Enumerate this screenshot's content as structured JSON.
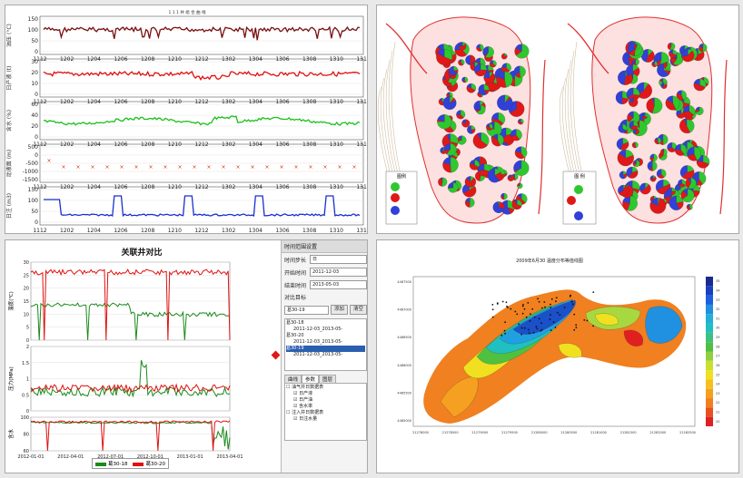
{
  "top_left": {
    "title": "1 1 1 井 组 合 曲 线",
    "rows": [
      {
        "label": "油压 (°C)",
        "ticks": [
          "150",
          "100",
          "50",
          "0"
        ],
        "color": "#7a0f0f"
      },
      {
        "label": "日产液 (t)",
        "ticks": [
          "30",
          "20",
          "10",
          "0"
        ],
        "color": "#e01010"
      },
      {
        "label": "含水 (%)",
        "ticks": [
          "60",
          "40",
          "20",
          "0"
        ],
        "color": "#18c018"
      },
      {
        "label": "动液面 (m)",
        "ticks": [
          "500",
          "0",
          "-500",
          "-1000",
          "-1500"
        ],
        "color": "#d83010"
      },
      {
        "label": "日注 (m3)",
        "ticks": [
          "150",
          "100",
          "50",
          "0"
        ],
        "color": "#1a2fd0"
      }
    ],
    "x_ticks": [
      "1112",
      "1202",
      "1204",
      "1206",
      "1208",
      "1210",
      "1212",
      "1302",
      "1304",
      "1306",
      "1308",
      "1310",
      "1312"
    ]
  },
  "top_right": {
    "legend_left_title": "图例",
    "legend_right_title": "图 例"
  },
  "bottom_left": {
    "title": "关联井对比",
    "series_names": [
      "葛30-18",
      "葛30-20"
    ],
    "series_colors": [
      "#1a8a1a",
      "#e01010"
    ],
    "axis1": {
      "label": "温度(℃)",
      "ticks": [
        "30",
        "25",
        "20",
        "15",
        "10",
        "5",
        "0"
      ]
    },
    "axis2": {
      "label": "压力(MPa)",
      "ticks": [
        "2",
        "1.5",
        "1",
        "0.5",
        "0"
      ]
    },
    "axis3": {
      "label": "含水",
      "ticks": [
        "100",
        "80",
        "60"
      ]
    },
    "x_ticks": [
      "2012-01-01",
      "2012-04-01",
      "2012-07-01",
      "2012-10-01",
      "2013-01-01",
      "2013-04-01"
    ]
  },
  "sidebar": {
    "header": "时间范围设置",
    "step_label": "时间步长",
    "step_value": "日",
    "start_label": "开始时间",
    "start_value": "2011-12-03",
    "end_label": "结束时间",
    "end_value": "2013-05-03",
    "compare_label": "对比目标",
    "compare_value": "葛30-19",
    "add_label": "添加",
    "clear_label": "清空",
    "tree_items": [
      "葛30-18",
      "2011-12-03_2013-05-",
      "葛30-20",
      "2011-12-03_2013-05-",
      "葛30-19",
      "2011-12-03_2013-05-"
    ],
    "tabs": [
      "曲线",
      "参数",
      "图层"
    ],
    "tree2_items": [
      "油气井日数据表",
      "日产液",
      "日产油",
      "含水率",
      "注入井日数据表",
      "日注水量"
    ]
  },
  "bottom_right": {
    "title": "2009年6月30 温度分布等值线图",
    "y_ticks": [
      "4487500",
      "4487000",
      "4486500",
      "4486000",
      "4485500",
      "4485000"
    ],
    "x_ticks": [
      "21278000",
      "21278500",
      "21279000",
      "21279500",
      "21280000",
      "21280500",
      "21281000",
      "21281500",
      "21282000",
      "21282500"
    ],
    "colorbar_ticks": [
      "35",
      "34",
      "33",
      "32",
      "31",
      "30",
      "29",
      "28",
      "27",
      "26",
      "25",
      "24",
      "23",
      "22",
      "21",
      "20"
    ]
  }
}
